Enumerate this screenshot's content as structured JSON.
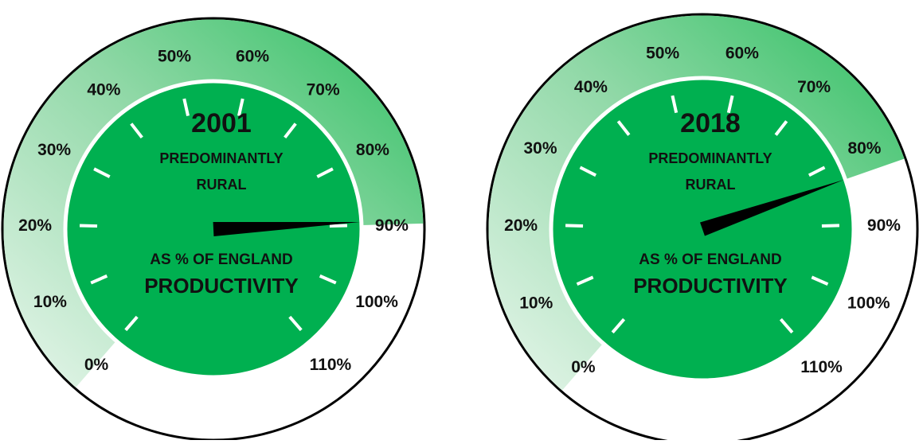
{
  "colors": {
    "dial_face": "#00b050",
    "band_strong": "#2fbf62",
    "band_light": "#e8f6ec",
    "needle": "#000000",
    "outline": "#000000",
    "tick": "#ffffff"
  },
  "chart_data": [
    {
      "type": "gauge",
      "year": "2001",
      "category_line1": "PREDOMINANTLY",
      "category_line2": "RURAL",
      "measure_line1": "AS % OF ENGLAND",
      "measure_line2": "PRODUCTIVITY",
      "scale_min": 0,
      "scale_max": 110,
      "ticks": [
        0,
        10,
        20,
        30,
        40,
        50,
        60,
        70,
        80,
        90,
        100,
        110
      ],
      "tick_labels": [
        "0%",
        "10%",
        "20%",
        "30%",
        "40%",
        "50%",
        "60%",
        "70%",
        "80%",
        "90%",
        "100%",
        "110%"
      ],
      "value": 89.5,
      "band_range": [
        0,
        90
      ]
    },
    {
      "type": "gauge",
      "year": "2018",
      "category_line1": "PREDOMINANTLY",
      "category_line2": "RURAL",
      "measure_line1": "AS % OF ENGLAND",
      "measure_line2": "PRODUCTIVITY",
      "scale_min": 0,
      "scale_max": 110,
      "ticks": [
        0,
        10,
        20,
        30,
        40,
        50,
        60,
        70,
        80,
        90,
        100,
        110
      ],
      "tick_labels": [
        "0%",
        "10%",
        "20%",
        "30%",
        "40%",
        "50%",
        "60%",
        "70%",
        "80%",
        "90%",
        "100%",
        "110%"
      ],
      "value": 83,
      "band_range": [
        0,
        83
      ]
    }
  ]
}
